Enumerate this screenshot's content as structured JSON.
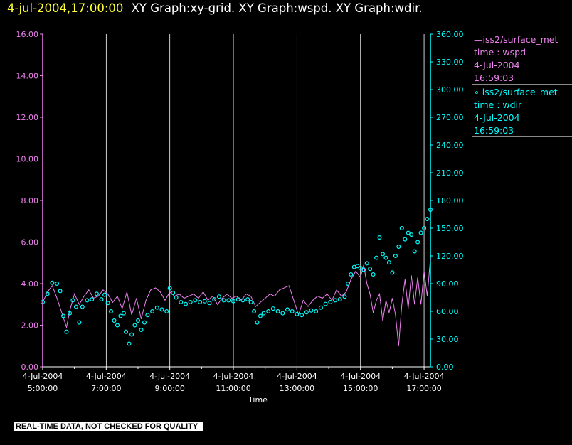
{
  "header": {
    "time": "4-jul-2004,17:00:00",
    "graphs": "XY Graph:xy-grid.  XY Graph:wspd.  XY Graph:wdir."
  },
  "legend": [
    {
      "line1": "—iss2/surface_met",
      "line2": "time : wspd",
      "line3": "4-Jul-2004",
      "line4": "16:59:03",
      "color": "#ee82ee"
    },
    {
      "line1": "∘ iss2/surface_met",
      "line2": "time : wdir",
      "line3": "4-Jul-2004",
      "line4": "16:59:03",
      "color": "#00ffff"
    }
  ],
  "footer": "REAL-TIME DATA, NOT CHECKED FOR QUALITY",
  "chart_data": {
    "type": "line",
    "xlabel": "Time",
    "x_range_hours": [
      5.0,
      17.2
    ],
    "x_ticks": [
      {
        "hour": 5,
        "date": "4-Jul-2004",
        "time": "5:00:00"
      },
      {
        "hour": 7,
        "date": "4-Jul-2004",
        "time": "7:00:00"
      },
      {
        "hour": 9,
        "date": "4-Jul-2004",
        "time": "9:00:00"
      },
      {
        "hour": 11,
        "date": "4-Jul-2004",
        "time": "11:00:00"
      },
      {
        "hour": 13,
        "date": "4-Jul-2004",
        "time": "13:00:00"
      },
      {
        "hour": 15,
        "date": "4-Jul-2004",
        "time": "15:00:00"
      },
      {
        "hour": 17,
        "date": "4-Jul-2004",
        "time": "17:00:00"
      }
    ],
    "minor_ticks_hours": [
      6,
      8,
      10,
      12,
      14,
      16
    ],
    "y_left": {
      "range": [
        0,
        16
      ],
      "ticks": [
        "0.00",
        "2.00",
        "4.00",
        "6.00",
        "8.00",
        "10.00",
        "12.00",
        "14.00",
        "16.00"
      ],
      "color": "#ee82ee"
    },
    "y_right": {
      "range": [
        0,
        360
      ],
      "ticks": [
        "0.00",
        "30.00",
        "60.00",
        "90.00",
        "120.00",
        "150.00",
        "180.00",
        "210.00",
        "240.00",
        "270.00",
        "300.00",
        "330.00",
        "360.00"
      ],
      "color": "#00ffff"
    },
    "grid": "vertical at major ticks",
    "series": [
      {
        "name": "iss2/surface_met time : wspd",
        "axis": "left",
        "style": "line",
        "color": "#ee82ee",
        "points": [
          [
            5.0,
            3.1
          ],
          [
            5.15,
            3.6
          ],
          [
            5.3,
            3.9
          ],
          [
            5.45,
            3.3
          ],
          [
            5.6,
            2.6
          ],
          [
            5.75,
            1.9
          ],
          [
            5.85,
            2.7
          ],
          [
            6.0,
            3.5
          ],
          [
            6.15,
            3.0
          ],
          [
            6.3,
            3.4
          ],
          [
            6.45,
            3.7
          ],
          [
            6.6,
            3.3
          ],
          [
            6.75,
            3.4
          ],
          [
            6.9,
            3.7
          ],
          [
            7.05,
            3.5
          ],
          [
            7.2,
            3.1
          ],
          [
            7.35,
            3.4
          ],
          [
            7.5,
            2.8
          ],
          [
            7.65,
            3.6
          ],
          [
            7.8,
            2.5
          ],
          [
            7.95,
            3.3
          ],
          [
            8.1,
            2.3
          ],
          [
            8.25,
            3.2
          ],
          [
            8.4,
            3.7
          ],
          [
            8.55,
            3.8
          ],
          [
            8.7,
            3.6
          ],
          [
            8.85,
            3.2
          ],
          [
            9.0,
            3.6
          ],
          [
            9.15,
            3.4
          ],
          [
            9.3,
            3.5
          ],
          [
            9.45,
            3.3
          ],
          [
            9.6,
            3.4
          ],
          [
            9.75,
            3.5
          ],
          [
            9.9,
            3.3
          ],
          [
            10.05,
            3.6
          ],
          [
            10.2,
            3.2
          ],
          [
            10.35,
            3.4
          ],
          [
            10.5,
            3.0
          ],
          [
            10.65,
            3.3
          ],
          [
            10.8,
            3.5
          ],
          [
            10.95,
            3.3
          ],
          [
            11.1,
            3.4
          ],
          [
            11.25,
            3.2
          ],
          [
            11.4,
            3.5
          ],
          [
            11.55,
            3.4
          ],
          [
            11.7,
            2.9
          ],
          [
            11.85,
            3.1
          ],
          [
            12.0,
            3.3
          ],
          [
            12.15,
            3.5
          ],
          [
            12.3,
            3.4
          ],
          [
            12.45,
            3.7
          ],
          [
            12.6,
            3.8
          ],
          [
            12.75,
            3.9
          ],
          [
            12.9,
            3.2
          ],
          [
            13.05,
            2.5
          ],
          [
            13.2,
            3.2
          ],
          [
            13.35,
            2.9
          ],
          [
            13.5,
            3.2
          ],
          [
            13.65,
            3.4
          ],
          [
            13.8,
            3.3
          ],
          [
            13.95,
            3.5
          ],
          [
            14.1,
            3.2
          ],
          [
            14.25,
            3.7
          ],
          [
            14.4,
            3.4
          ],
          [
            14.55,
            3.6
          ],
          [
            14.7,
            4.2
          ],
          [
            14.85,
            4.6
          ],
          [
            15.0,
            4.3
          ],
          [
            15.1,
            4.9
          ],
          [
            15.2,
            4.0
          ],
          [
            15.3,
            3.5
          ],
          [
            15.4,
            2.6
          ],
          [
            15.5,
            3.2
          ],
          [
            15.6,
            3.5
          ],
          [
            15.7,
            2.2
          ],
          [
            15.8,
            3.2
          ],
          [
            15.9,
            2.6
          ],
          [
            16.0,
            3.3
          ],
          [
            16.1,
            2.5
          ],
          [
            16.2,
            1.0
          ],
          [
            16.3,
            3.0
          ],
          [
            16.4,
            4.2
          ],
          [
            16.5,
            2.8
          ],
          [
            16.6,
            4.4
          ],
          [
            16.7,
            3.0
          ],
          [
            16.8,
            4.3
          ],
          [
            16.9,
            3.0
          ],
          [
            17.0,
            4.6
          ],
          [
            17.1,
            3.4
          ],
          [
            17.2,
            5.2
          ]
        ]
      },
      {
        "name": "iss2/surface_met time : wdir",
        "axis": "right",
        "style": "markers",
        "color": "#00ffff",
        "points": [
          [
            5.0,
            70
          ],
          [
            5.15,
            79
          ],
          [
            5.3,
            91
          ],
          [
            5.45,
            90
          ],
          [
            5.55,
            82
          ],
          [
            5.65,
            55
          ],
          [
            5.75,
            38
          ],
          [
            5.85,
            58
          ],
          [
            5.95,
            72
          ],
          [
            6.05,
            65
          ],
          [
            6.15,
            48
          ],
          [
            6.25,
            65
          ],
          [
            6.4,
            72
          ],
          [
            6.55,
            73
          ],
          [
            6.7,
            79
          ],
          [
            6.85,
            73
          ],
          [
            6.95,
            78
          ],
          [
            7.05,
            69
          ],
          [
            7.15,
            60
          ],
          [
            7.25,
            50
          ],
          [
            7.35,
            45
          ],
          [
            7.45,
            55
          ],
          [
            7.55,
            58
          ],
          [
            7.62,
            38
          ],
          [
            7.72,
            25
          ],
          [
            7.8,
            35
          ],
          [
            7.9,
            45
          ],
          [
            8.0,
            50
          ],
          [
            8.1,
            40
          ],
          [
            8.2,
            48
          ],
          [
            8.3,
            56
          ],
          [
            8.45,
            60
          ],
          [
            8.6,
            64
          ],
          [
            8.75,
            62
          ],
          [
            8.9,
            60
          ],
          [
            9.0,
            85
          ],
          [
            9.1,
            80
          ],
          [
            9.2,
            75
          ],
          [
            9.35,
            70
          ],
          [
            9.5,
            68
          ],
          [
            9.65,
            70
          ],
          [
            9.8,
            72
          ],
          [
            9.95,
            70
          ],
          [
            10.1,
            71
          ],
          [
            10.25,
            69
          ],
          [
            10.4,
            73
          ],
          [
            10.55,
            76
          ],
          [
            10.7,
            72
          ],
          [
            10.85,
            72
          ],
          [
            11.0,
            71
          ],
          [
            11.15,
            73
          ],
          [
            11.3,
            72
          ],
          [
            11.45,
            73
          ],
          [
            11.55,
            70
          ],
          [
            11.65,
            60
          ],
          [
            11.75,
            48
          ],
          [
            11.85,
            55
          ],
          [
            11.95,
            58
          ],
          [
            12.1,
            60
          ],
          [
            12.25,
            63
          ],
          [
            12.4,
            60
          ],
          [
            12.55,
            58
          ],
          [
            12.7,
            62
          ],
          [
            12.85,
            60
          ],
          [
            13.0,
            57
          ],
          [
            13.15,
            56
          ],
          [
            13.3,
            59
          ],
          [
            13.45,
            61
          ],
          [
            13.6,
            60
          ],
          [
            13.75,
            64
          ],
          [
            13.9,
            68
          ],
          [
            14.05,
            70
          ],
          [
            14.2,
            72
          ],
          [
            14.35,
            73
          ],
          [
            14.5,
            76
          ],
          [
            14.6,
            90
          ],
          [
            14.7,
            100
          ],
          [
            14.8,
            108
          ],
          [
            14.9,
            109
          ],
          [
            15.0,
            107
          ],
          [
            15.1,
            105
          ],
          [
            15.2,
            112
          ],
          [
            15.3,
            106
          ],
          [
            15.4,
            100
          ],
          [
            15.5,
            118
          ],
          [
            15.6,
            140
          ],
          [
            15.7,
            122
          ],
          [
            15.8,
            118
          ],
          [
            15.9,
            113
          ],
          [
            16.0,
            102
          ],
          [
            16.1,
            120
          ],
          [
            16.2,
            130
          ],
          [
            16.3,
            150
          ],
          [
            16.4,
            138
          ],
          [
            16.5,
            145
          ],
          [
            16.6,
            143
          ],
          [
            16.7,
            125
          ],
          [
            16.8,
            135
          ],
          [
            16.9,
            145
          ],
          [
            17.0,
            150
          ],
          [
            17.1,
            160
          ],
          [
            17.2,
            170
          ]
        ]
      }
    ]
  }
}
